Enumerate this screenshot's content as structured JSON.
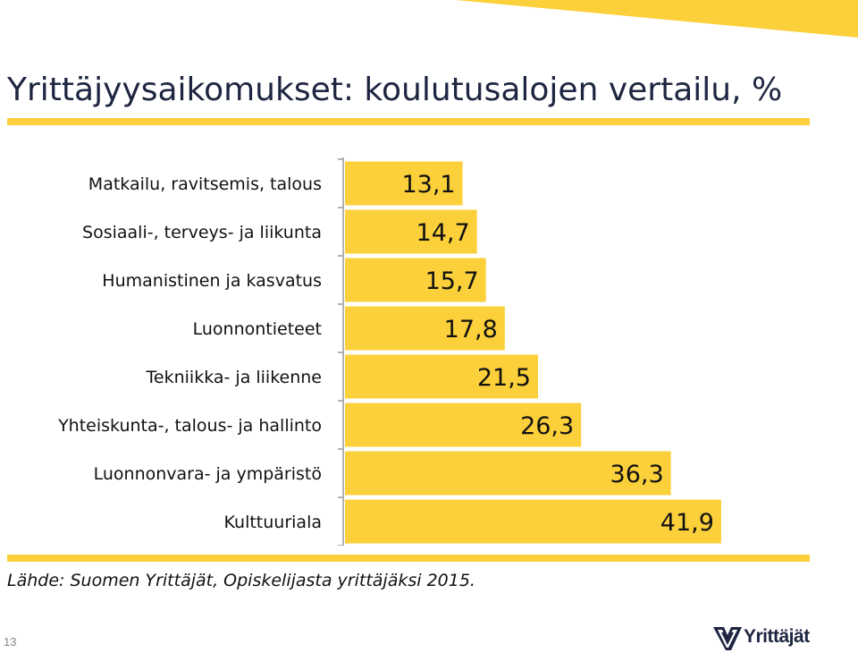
{
  "colors": {
    "accent": "#fcd03a",
    "title": "#1d2540",
    "text": "#111111",
    "axis": "#9a9a9a"
  },
  "slide": {
    "title": "Yrittäjyysaikomukset: koulutusalojen vertailu, %",
    "source": "Lähde: Suomen Yrittäjät, Opiskelijasta yrittäjäksi 2015.",
    "page_number": "13",
    "logo_text": "Yrittäjät",
    "logo_icon": "yrittajat-logo-icon"
  },
  "chart_data": {
    "type": "bar",
    "orientation": "horizontal",
    "categories": [
      "Matkailu, ravitsemis, talous",
      "Sosiaali-, terveys- ja liikunta",
      "Humanistinen ja kasvatus",
      "Luonnontieteet",
      "Tekniikka- ja liikenne",
      "Yhteiskunta-, talous- ja hallinto",
      "Luonnonvara- ja ympäristö",
      "Kulttuuriala"
    ],
    "values": [
      13.1,
      14.7,
      15.7,
      17.8,
      21.5,
      26.3,
      36.3,
      41.9
    ],
    "value_labels": [
      "13,1",
      "14,7",
      "15,7",
      "17,8",
      "21,5",
      "26,3",
      "36,3",
      "41,9"
    ],
    "xlim": [
      0,
      44
    ],
    "grid": false,
    "legend": "none"
  }
}
